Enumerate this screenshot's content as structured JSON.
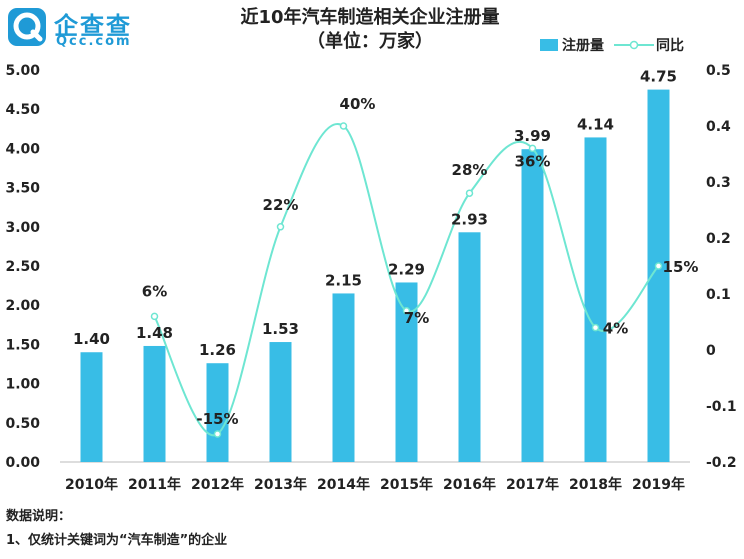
{
  "logo": {
    "name": "企查查",
    "sub": "Qcc.com"
  },
  "title_line1": "近10年汽车制造相关企业注册量",
  "title_line2": "（单位：万家）",
  "colors": {
    "bar": "#38bde6",
    "line": "#6ee6d2",
    "label": "#222222",
    "logo": "#1f9ad6"
  },
  "chart_data": {
    "type": "bar",
    "categories": [
      "2010年",
      "2011年",
      "2012年",
      "2013年",
      "2014年",
      "2015年",
      "2016年",
      "2017年",
      "2018年",
      "2019年"
    ],
    "series": [
      {
        "name": "注册量",
        "type": "bar",
        "axis": "left",
        "values": [
          1.4,
          1.48,
          1.26,
          1.53,
          2.15,
          2.29,
          2.93,
          3.99,
          4.14,
          4.75
        ],
        "labels": [
          "1.40",
          "1.48",
          "1.26",
          "1.53",
          "2.15",
          "2.29",
          "2.93",
          "3.99",
          "4.14",
          "4.75"
        ]
      },
      {
        "name": "同比",
        "type": "line",
        "axis": "right",
        "values": [
          null,
          0.06,
          -0.15,
          0.22,
          0.4,
          0.07,
          0.28,
          0.36,
          0.04,
          0.15
        ],
        "labels": [
          "",
          "6%",
          "-15%",
          "22%",
          "40%",
          "7%",
          "28%",
          "36%",
          "4%",
          "15%"
        ]
      }
    ],
    "y_left": {
      "min": 0,
      "max": 5,
      "ticks": [
        "0.00",
        "0.50",
        "1.00",
        "1.50",
        "2.00",
        "2.50",
        "3.00",
        "3.50",
        "4.00",
        "4.50",
        "5.00"
      ]
    },
    "y_right": {
      "min": -0.2,
      "max": 0.5,
      "ticks": [
        "-0.2",
        "-0.1",
        "0",
        "0.1",
        "0.2",
        "0.3",
        "0.4",
        "0.5"
      ]
    },
    "grid": false,
    "legend_position": "top-right"
  },
  "notes": {
    "heading": "数据说明：",
    "line1": "1、仅统计关键词为“汽车制造”的企业"
  }
}
